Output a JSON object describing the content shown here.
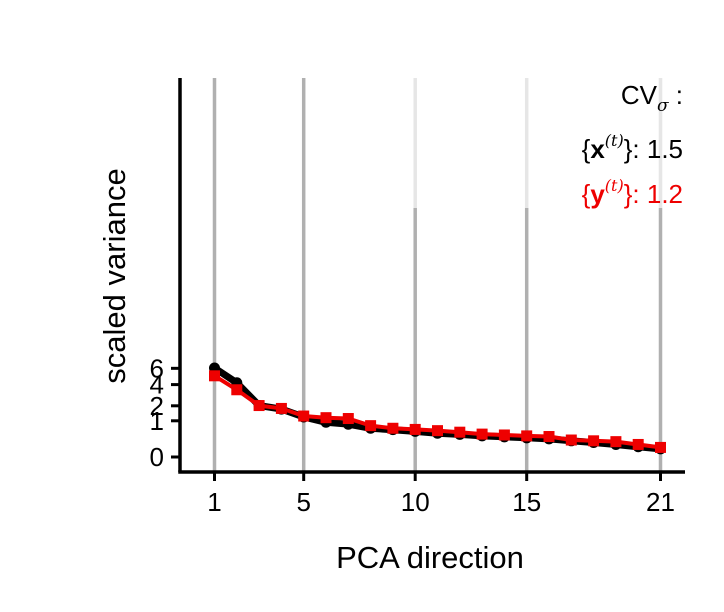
{
  "chart_data": {
    "type": "line",
    "xlabel": "PCA direction",
    "ylabel": "scaled variance",
    "xlim": [
      0,
      21.6
    ],
    "ylim": [
      -0.2,
      6.4
    ],
    "x_ticks": [
      1,
      5,
      10,
      15,
      21
    ],
    "x_tick_labels": [
      "1",
      "5",
      "10",
      "15",
      "21"
    ],
    "y_ticks": [
      0,
      1,
      2,
      4,
      6
    ],
    "y_tick_labels": [
      "0",
      "1",
      "2",
      "4",
      "6"
    ],
    "y_scale": "sqrt",
    "grid": "vertical lines at x ticks",
    "legend_placement": "top-right",
    "legend": {
      "title_main": "CV",
      "title_sub": "σ",
      "title_suffix": " :",
      "entries": [
        {
          "open": "{",
          "symbol": "x",
          "sup": "(t)",
          "close": "}",
          "value_label": ": 1.5",
          "color": "#000000"
        },
        {
          "open": "{",
          "symbol": "y",
          "sup": "(t)",
          "close": "}",
          "value_label": ": 1.2",
          "color": "#ee0000"
        }
      ]
    },
    "x": [
      1,
      2,
      3,
      4,
      5,
      6,
      7,
      8,
      9,
      10,
      11,
      12,
      13,
      14,
      15,
      16,
      17,
      18,
      19,
      20,
      21
    ],
    "series": [
      {
        "color": "#000000",
        "marker": "circle",
        "values": [
          6.05,
          4.2,
          2.02,
          1.75,
          1.22,
          0.92,
          0.82,
          0.63,
          0.57,
          0.5,
          0.43,
          0.39,
          0.34,
          0.31,
          0.28,
          0.25,
          0.2,
          0.16,
          0.12,
          0.08,
          0.05
        ]
      },
      {
        "color": "#ee0000",
        "marker": "square",
        "values": [
          5.03,
          3.45,
          2.02,
          1.8,
          1.28,
          1.18,
          1.13,
          0.75,
          0.63,
          0.58,
          0.53,
          0.47,
          0.4,
          0.37,
          0.34,
          0.32,
          0.22,
          0.2,
          0.18,
          0.12,
          0.07
        ]
      }
    ]
  }
}
